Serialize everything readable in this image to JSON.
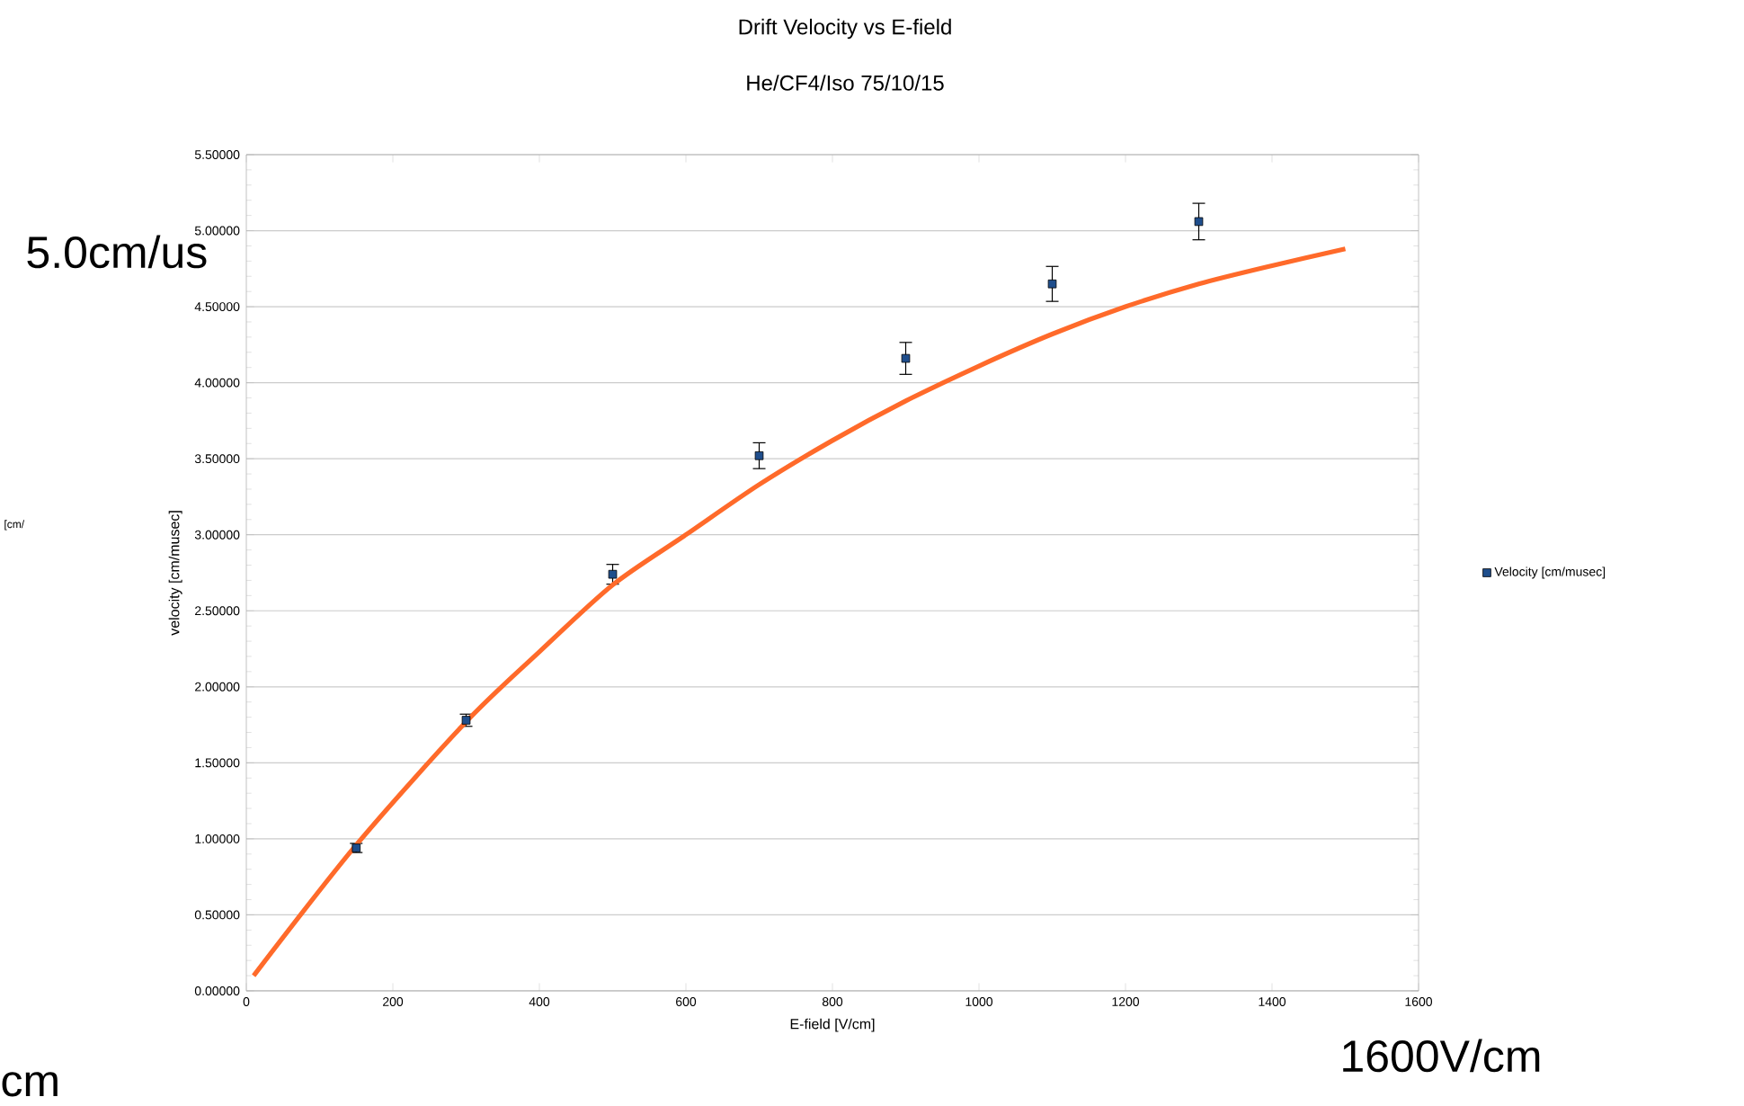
{
  "chart_data": {
    "type": "scatter",
    "title": "Drift Velocity vs E-field",
    "subtitle": "He/CF4/Iso 75/10/15",
    "xlabel": "E-field [V/cm]",
    "ylabel": "velocity [cm/musec]",
    "xlim": [
      0,
      1600
    ],
    "xticks": [
      0,
      200,
      400,
      600,
      800,
      1000,
      1200,
      1400,
      1600
    ],
    "ylim": [
      0,
      5.5
    ],
    "yticks": [
      {
        "value": 0,
        "label": "0.00000"
      },
      {
        "value": 0.5,
        "label": "0.50000"
      },
      {
        "value": 1,
        "label": "1.00000"
      },
      {
        "value": 1.5,
        "label": "1.50000"
      },
      {
        "value": 2,
        "label": "2.00000"
      },
      {
        "value": 2.5,
        "label": "2.50000"
      },
      {
        "value": 3,
        "label": "3.00000"
      },
      {
        "value": 3.5,
        "label": "3.50000"
      },
      {
        "value": 4,
        "label": "4.00000"
      },
      {
        "value": 4.5,
        "label": "4.50000"
      },
      {
        "value": 5,
        "label": "5.00000"
      },
      {
        "value": 5.5,
        "label": "5.50000"
      }
    ],
    "grid": "y",
    "legend": "right",
    "marker": "square",
    "series": [
      {
        "name": "Velocity [cm/musec]",
        "color": "#1f4e8c",
        "x": [
          150,
          300,
          500,
          700,
          900,
          1100,
          1300
        ],
        "values": [
          0.94,
          1.78,
          2.74,
          3.52,
          4.16,
          4.65,
          5.06
        ],
        "errors": [
          0.03,
          0.04,
          0.065,
          0.085,
          0.105,
          0.115,
          0.12
        ]
      },
      {
        "type": "line",
        "color": "#ff6a2a",
        "marker": "none",
        "x": [
          10,
          150,
          300,
          400,
          500,
          600,
          700,
          800,
          900,
          1000,
          1100,
          1200,
          1300,
          1400,
          1500
        ],
        "values": [
          0.1,
          0.96,
          1.77,
          2.23,
          2.67,
          3.0,
          3.33,
          3.62,
          3.88,
          4.11,
          4.32,
          4.5,
          4.65,
          4.77,
          4.88
        ]
      }
    ],
    "annotations": [
      "5.0cm/us",
      "1600V/cm",
      "cm",
      "[cm/"
    ]
  }
}
